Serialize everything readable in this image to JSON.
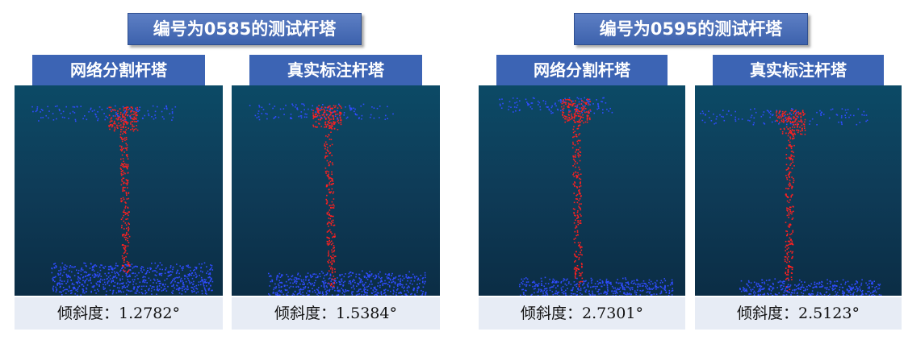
{
  "colors": {
    "tower_points": "#ff2020",
    "ground_points": "#2f4cff",
    "header_bg": "#3c64b4",
    "caption_bg": "#e7ecf5"
  },
  "groups": [
    {
      "title": "编号为0585的测试杆塔",
      "panels": [
        {
          "label": "网络分割杆塔",
          "caption": "倾斜度：1.2782°",
          "tilt_deg": 1.2782
        },
        {
          "label": "真实标注杆塔",
          "caption": "倾斜度：1.5384°",
          "tilt_deg": 1.5384
        }
      ]
    },
    {
      "title": "编号为0595的测试杆塔",
      "panels": [
        {
          "label": "网络分割杆塔",
          "caption": "倾斜度：2.7301°",
          "tilt_deg": 2.7301
        },
        {
          "label": "真实标注杆塔",
          "caption": "倾斜度：2.5123°",
          "tilt_deg": 2.5123
        }
      ]
    }
  ]
}
